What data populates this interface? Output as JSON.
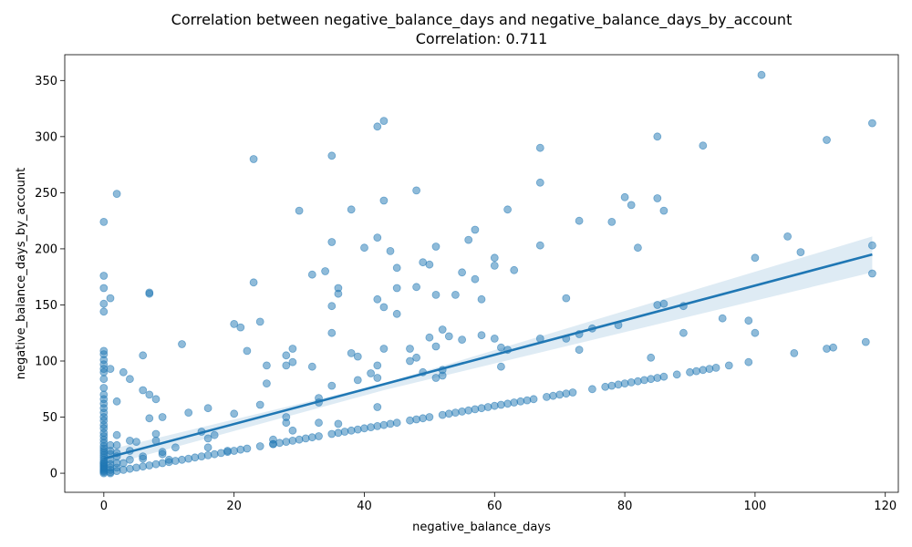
{
  "chart_data": {
    "type": "scatter",
    "title": "Correlation between negative_balance_days and negative_balance_days_by_account",
    "subtitle": "Correlation: 0.711",
    "xlabel": "negative_balance_days",
    "ylabel": "negative_balance_days_by_account",
    "xlim": [
      -6,
      122
    ],
    "ylim": [
      -17,
      373
    ],
    "xticks": [
      0,
      20,
      40,
      60,
      80,
      100,
      120
    ],
    "yticks": [
      0,
      50,
      100,
      150,
      200,
      250,
      300,
      350
    ],
    "xtick_labels": [
      "0",
      "20",
      "40",
      "60",
      "80",
      "100",
      "120"
    ],
    "ytick_labels": [
      "0",
      "50",
      "100",
      "150",
      "200",
      "250",
      "300",
      "350"
    ],
    "grid": false,
    "legend": "none",
    "colors": {
      "points": "#1f77b4",
      "line": "#1f77b4",
      "band": "#1f77b4"
    },
    "regression": {
      "x": [
        0,
        118
      ],
      "y": [
        13,
        195
      ],
      "ci_upper": [
        20,
        211
      ],
      "ci_lower": [
        6,
        179
      ],
      "ci_x_mid": 43,
      "ci_mid_upper": 80,
      "ci_mid_lower": 74
    },
    "points": [
      [
        0,
        0
      ],
      [
        0,
        1
      ],
      [
        0,
        2
      ],
      [
        0,
        3
      ],
      [
        0,
        4
      ],
      [
        0,
        5
      ],
      [
        0,
        6
      ],
      [
        0,
        7
      ],
      [
        0,
        8
      ],
      [
        0,
        9
      ],
      [
        0,
        10
      ],
      [
        0,
        12
      ],
      [
        0,
        14
      ],
      [
        0,
        16
      ],
      [
        0,
        18
      ],
      [
        0,
        20
      ],
      [
        0,
        22
      ],
      [
        0,
        24
      ],
      [
        0,
        27
      ],
      [
        0,
        30
      ],
      [
        0,
        33
      ],
      [
        0,
        36
      ],
      [
        0,
        40
      ],
      [
        0,
        43
      ],
      [
        0,
        47
      ],
      [
        0,
        50
      ],
      [
        0,
        54
      ],
      [
        0,
        58
      ],
      [
        0,
        62
      ],
      [
        0,
        66
      ],
      [
        0,
        70
      ],
      [
        0,
        76
      ],
      [
        0,
        84
      ],
      [
        0,
        90
      ],
      [
        0,
        93
      ],
      [
        0,
        97
      ],
      [
        0,
        101
      ],
      [
        0,
        106
      ],
      [
        0,
        109
      ],
      [
        0,
        144
      ],
      [
        0,
        151
      ],
      [
        0,
        165
      ],
      [
        0,
        176
      ],
      [
        0,
        224
      ],
      [
        1,
        0
      ],
      [
        1,
        1
      ],
      [
        1,
        3
      ],
      [
        1,
        5
      ],
      [
        1,
        8
      ],
      [
        1,
        12
      ],
      [
        1,
        17
      ],
      [
        1,
        20
      ],
      [
        1,
        25
      ],
      [
        1,
        93
      ],
      [
        1,
        156
      ],
      [
        2,
        2
      ],
      [
        2,
        5
      ],
      [
        2,
        9
      ],
      [
        2,
        15
      ],
      [
        2,
        18
      ],
      [
        2,
        25
      ],
      [
        2,
        34
      ],
      [
        2,
        64
      ],
      [
        2,
        249
      ],
      [
        3,
        3
      ],
      [
        3,
        9
      ],
      [
        3,
        90
      ],
      [
        4,
        4
      ],
      [
        4,
        12
      ],
      [
        4,
        20
      ],
      [
        4,
        29
      ],
      [
        4,
        84
      ],
      [
        5,
        5
      ],
      [
        5,
        28
      ],
      [
        6,
        6
      ],
      [
        6,
        13
      ],
      [
        6,
        15
      ],
      [
        6,
        74
      ],
      [
        6,
        105
      ],
      [
        7,
        7
      ],
      [
        7,
        49
      ],
      [
        7,
        70
      ],
      [
        7,
        160
      ],
      [
        7,
        161
      ],
      [
        8,
        8
      ],
      [
        8,
        29
      ],
      [
        8,
        35
      ],
      [
        8,
        66
      ],
      [
        9,
        9
      ],
      [
        9,
        17
      ],
      [
        9,
        19
      ],
      [
        9,
        50
      ],
      [
        10,
        10
      ],
      [
        10,
        12
      ],
      [
        11,
        11
      ],
      [
        11,
        23
      ],
      [
        12,
        12
      ],
      [
        12,
        115
      ],
      [
        13,
        13
      ],
      [
        13,
        54
      ],
      [
        14,
        14
      ],
      [
        15,
        15
      ],
      [
        15,
        37
      ],
      [
        16,
        16
      ],
      [
        16,
        23
      ],
      [
        16,
        31
      ],
      [
        16,
        58
      ],
      [
        17,
        17
      ],
      [
        17,
        34
      ],
      [
        18,
        18
      ],
      [
        19,
        19
      ],
      [
        19,
        20
      ],
      [
        20,
        20
      ],
      [
        20,
        53
      ],
      [
        20,
        133
      ],
      [
        21,
        21
      ],
      [
        21,
        130
      ],
      [
        22,
        22
      ],
      [
        22,
        109
      ],
      [
        23,
        170
      ],
      [
        23,
        280
      ],
      [
        24,
        24
      ],
      [
        24,
        61
      ],
      [
        24,
        135
      ],
      [
        25,
        80
      ],
      [
        25,
        96
      ],
      [
        26,
        26
      ],
      [
        26,
        30
      ],
      [
        26,
        26
      ],
      [
        27,
        27
      ],
      [
        28,
        28
      ],
      [
        28,
        45
      ],
      [
        28,
        50
      ],
      [
        28,
        96
      ],
      [
        28,
        105
      ],
      [
        29,
        29
      ],
      [
        29,
        38
      ],
      [
        29,
        99
      ],
      [
        29,
        111
      ],
      [
        30,
        30
      ],
      [
        30,
        234
      ],
      [
        31,
        31
      ],
      [
        32,
        32
      ],
      [
        32,
        95
      ],
      [
        32,
        177
      ],
      [
        33,
        33
      ],
      [
        33,
        45
      ],
      [
        33,
        63
      ],
      [
        33,
        67
      ],
      [
        34,
        180
      ],
      [
        35,
        35
      ],
      [
        35,
        78
      ],
      [
        35,
        125
      ],
      [
        35,
        149
      ],
      [
        35,
        206
      ],
      [
        35,
        283
      ],
      [
        36,
        36
      ],
      [
        36,
        44
      ],
      [
        36,
        160
      ],
      [
        36,
        165
      ],
      [
        37,
        37
      ],
      [
        38,
        38
      ],
      [
        38,
        107
      ],
      [
        38,
        235
      ],
      [
        39,
        39
      ],
      [
        39,
        83
      ],
      [
        39,
        104
      ],
      [
        40,
        40
      ],
      [
        40,
        201
      ],
      [
        41,
        41
      ],
      [
        41,
        89
      ],
      [
        42,
        42
      ],
      [
        42,
        59
      ],
      [
        42,
        85
      ],
      [
        42,
        96
      ],
      [
        42,
        155
      ],
      [
        42,
        210
      ],
      [
        42,
        309
      ],
      [
        43,
        43
      ],
      [
        43,
        111
      ],
      [
        43,
        148
      ],
      [
        43,
        243
      ],
      [
        43,
        314
      ],
      [
        44,
        44
      ],
      [
        44,
        198
      ],
      [
        45,
        45
      ],
      [
        45,
        142
      ],
      [
        45,
        165
      ],
      [
        45,
        183
      ],
      [
        47,
        47
      ],
      [
        47,
        100
      ],
      [
        47,
        111
      ],
      [
        48,
        48
      ],
      [
        48,
        103
      ],
      [
        48,
        166
      ],
      [
        48,
        252
      ],
      [
        49,
        49
      ],
      [
        49,
        90
      ],
      [
        49,
        188
      ],
      [
        50,
        50
      ],
      [
        50,
        121
      ],
      [
        50,
        186
      ],
      [
        51,
        85
      ],
      [
        51,
        113
      ],
      [
        51,
        159
      ],
      [
        51,
        202
      ],
      [
        52,
        52
      ],
      [
        52,
        87
      ],
      [
        52,
        92
      ],
      [
        52,
        128
      ],
      [
        53,
        53
      ],
      [
        53,
        122
      ],
      [
        54,
        54
      ],
      [
        54,
        159
      ],
      [
        55,
        55
      ],
      [
        55,
        119
      ],
      [
        55,
        179
      ],
      [
        56,
        56
      ],
      [
        56,
        208
      ],
      [
        57,
        57
      ],
      [
        57,
        173
      ],
      [
        57,
        217
      ],
      [
        58,
        58
      ],
      [
        58,
        123
      ],
      [
        58,
        155
      ],
      [
        59,
        59
      ],
      [
        60,
        60
      ],
      [
        60,
        120
      ],
      [
        60,
        185
      ],
      [
        60,
        192
      ],
      [
        61,
        61
      ],
      [
        61,
        95
      ],
      [
        61,
        112
      ],
      [
        62,
        62
      ],
      [
        62,
        110
      ],
      [
        62,
        235
      ],
      [
        63,
        63
      ],
      [
        63,
        181
      ],
      [
        64,
        64
      ],
      [
        65,
        65
      ],
      [
        66,
        66
      ],
      [
        67,
        120
      ],
      [
        67,
        203
      ],
      [
        67,
        259
      ],
      [
        67,
        290
      ],
      [
        68,
        68
      ],
      [
        69,
        69
      ],
      [
        70,
        70
      ],
      [
        71,
        71
      ],
      [
        71,
        120
      ],
      [
        71,
        156
      ],
      [
        72,
        72
      ],
      [
        73,
        110
      ],
      [
        73,
        124
      ],
      [
        73,
        225
      ],
      [
        75,
        75
      ],
      [
        75,
        129
      ],
      [
        77,
        77
      ],
      [
        78,
        78
      ],
      [
        78,
        224
      ],
      [
        79,
        79
      ],
      [
        79,
        132
      ],
      [
        80,
        80
      ],
      [
        80,
        246
      ],
      [
        81,
        81
      ],
      [
        81,
        239
      ],
      [
        82,
        82
      ],
      [
        82,
        201
      ],
      [
        83,
        83
      ],
      [
        84,
        84
      ],
      [
        84,
        103
      ],
      [
        85,
        85
      ],
      [
        85,
        150
      ],
      [
        85,
        245
      ],
      [
        85,
        300
      ],
      [
        86,
        86
      ],
      [
        86,
        151
      ],
      [
        86,
        234
      ],
      [
        88,
        88
      ],
      [
        89,
        125
      ],
      [
        89,
        149
      ],
      [
        90,
        90
      ],
      [
        91,
        91
      ],
      [
        92,
        92
      ],
      [
        92,
        292
      ],
      [
        93,
        93
      ],
      [
        94,
        94
      ],
      [
        95,
        138
      ],
      [
        96,
        96
      ],
      [
        99,
        99
      ],
      [
        99,
        136
      ],
      [
        100,
        125
      ],
      [
        100,
        192
      ],
      [
        101,
        355
      ],
      [
        105,
        211
      ],
      [
        106,
        107
      ],
      [
        107,
        197
      ],
      [
        111,
        111
      ],
      [
        111,
        297
      ],
      [
        112,
        112
      ],
      [
        117,
        117
      ],
      [
        118,
        178
      ],
      [
        118,
        203
      ],
      [
        118,
        312
      ]
    ]
  }
}
